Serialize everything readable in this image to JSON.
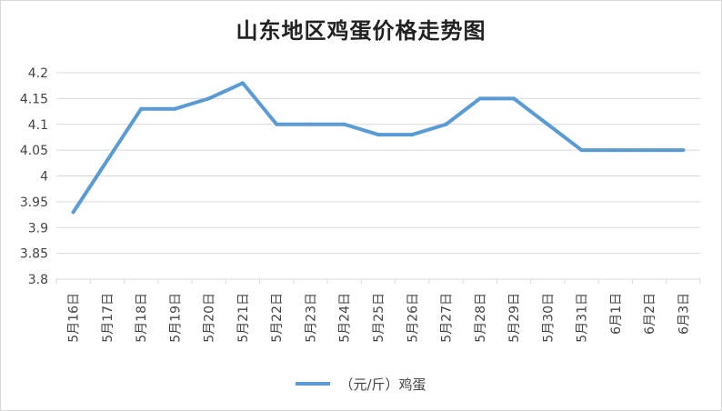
{
  "title": "山东地区鸡蛋价格走势图",
  "colors": {
    "series": "#5b9bd5",
    "grid": "#d9d9d9",
    "text": "#444444"
  },
  "chart_data": {
    "type": "line",
    "title": "山东地区鸡蛋价格走势图",
    "categories": [
      "5月16日",
      "5月17日",
      "5月18日",
      "5月19日",
      "5月20日",
      "5月21日",
      "5月22日",
      "5月23日",
      "5月24日",
      "5月25日",
      "5月26日",
      "5月27日",
      "5月28日",
      "5月29日",
      "5月30日",
      "5月31日",
      "6月1日",
      "6月2日",
      "6月3日"
    ],
    "y_ticks": [
      "3.8",
      "3.85",
      "3.9",
      "3.95",
      "4",
      "4.05",
      "4.1",
      "4.15",
      "4.2"
    ],
    "ylim": [
      3.8,
      4.2
    ],
    "grid": true,
    "legend_position": "bottom",
    "series": [
      {
        "name": "（元/斤）鸡蛋",
        "values": [
          3.93,
          4.03,
          4.13,
          4.13,
          4.15,
          4.18,
          4.1,
          4.1,
          4.1,
          4.08,
          4.08,
          4.1,
          4.15,
          4.15,
          4.1,
          4.05,
          4.05,
          4.05,
          4.05
        ]
      }
    ]
  }
}
